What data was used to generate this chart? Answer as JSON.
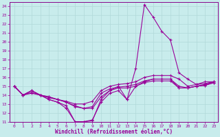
{
  "xlabel": "Windchill (Refroidissement éolien,°C)",
  "bg_color": "#c8ecec",
  "grid_color": "#b0d8d8",
  "line_color": "#990099",
  "spine_color": "#880088",
  "xlim": [
    -0.5,
    23.5
  ],
  "ylim": [
    11,
    24.5
  ],
  "yticks": [
    11,
    12,
    13,
    14,
    15,
    16,
    17,
    18,
    19,
    20,
    21,
    22,
    23,
    24
  ],
  "xticks": [
    0,
    1,
    2,
    3,
    4,
    5,
    6,
    7,
    8,
    9,
    10,
    11,
    12,
    13,
    14,
    15,
    16,
    17,
    18,
    19,
    20,
    21,
    22,
    23
  ],
  "lines": [
    {
      "x": [
        0,
        1,
        2,
        3,
        4,
        5,
        6,
        7,
        8,
        9,
        10,
        11,
        12,
        13,
        14,
        15,
        16,
        17,
        18,
        19,
        20,
        21,
        22,
        23
      ],
      "y": [
        15,
        14,
        14.5,
        14,
        13.5,
        13.2,
        12.8,
        11.0,
        11.0,
        11.1,
        13.5,
        14.5,
        15.0,
        13.5,
        17.0,
        24.2,
        22.8,
        21.2,
        20.2,
        16.5,
        15.8,
        15.2,
        15.5,
        15.5
      ]
    },
    {
      "x": [
        0,
        1,
        2,
        3,
        4,
        5,
        6,
        7,
        8,
        9,
        10,
        11,
        12,
        13,
        14,
        15,
        16,
        17,
        18,
        19,
        20,
        21,
        22,
        23
      ],
      "y": [
        15,
        14,
        14.5,
        14,
        13.8,
        13.5,
        13.3,
        13.0,
        13.0,
        13.3,
        14.5,
        15.0,
        15.2,
        15.3,
        15.5,
        16.0,
        16.2,
        16.2,
        16.2,
        15.8,
        15.0,
        15.2,
        15.3,
        15.5
      ]
    },
    {
      "x": [
        0,
        1,
        2,
        3,
        4,
        5,
        6,
        7,
        8,
        9,
        10,
        11,
        12,
        13,
        14,
        15,
        16,
        17,
        18,
        19,
        20,
        21,
        22,
        23
      ],
      "y": [
        15,
        14,
        14.3,
        14,
        13.8,
        13.5,
        13.2,
        12.7,
        12.5,
        12.7,
        14.2,
        14.7,
        14.9,
        15.0,
        15.2,
        15.6,
        15.8,
        15.8,
        15.8,
        15.0,
        14.8,
        15.0,
        15.2,
        15.5
      ]
    },
    {
      "x": [
        0,
        1,
        2,
        3,
        4,
        5,
        6,
        7,
        8,
        9,
        10,
        11,
        12,
        13,
        14,
        15,
        16,
        17,
        18,
        19,
        20,
        21,
        22,
        23
      ],
      "y": [
        15,
        14,
        14.2,
        14,
        13.7,
        13.5,
        13.2,
        12.8,
        12.5,
        12.5,
        13.8,
        14.5,
        14.8,
        14.8,
        15.0,
        15.4,
        15.6,
        15.6,
        15.6,
        14.8,
        14.8,
        15.0,
        15.1,
        15.4
      ]
    },
    {
      "x": [
        0,
        1,
        2,
        3,
        4,
        5,
        6,
        7,
        8,
        9,
        10,
        11,
        12,
        13,
        14,
        15,
        16,
        17,
        18,
        19,
        20,
        21,
        22,
        23
      ],
      "y": [
        15,
        14,
        14.5,
        14,
        13.5,
        13.2,
        12.5,
        11.0,
        11.0,
        11.2,
        13.2,
        14.2,
        14.5,
        13.5,
        15.0,
        15.5,
        15.8,
        15.8,
        15.8,
        14.8,
        14.8,
        15.0,
        15.1,
        15.4
      ]
    }
  ]
}
